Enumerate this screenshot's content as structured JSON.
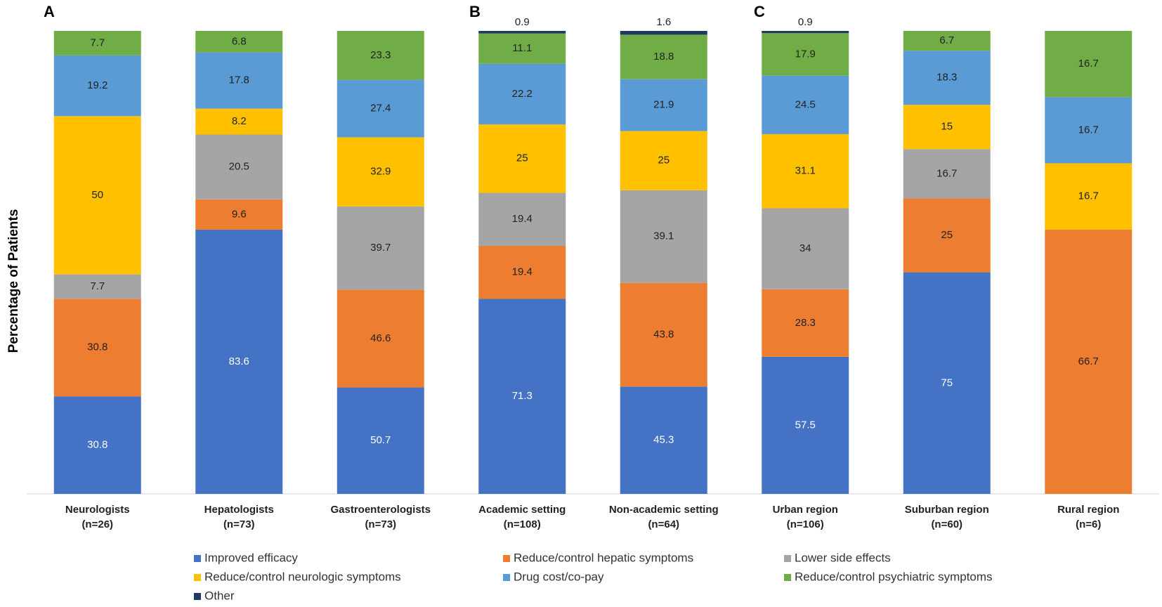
{
  "chart_data": {
    "type": "stacked_bar",
    "y_label": "Percentage of Patients",
    "annotations": [
      "A",
      "B",
      "C"
    ],
    "categories": [
      "Neurologists\n(n=26)",
      "Hepatologists\n(n=73)",
      "Gastroenterologists\n(n=73)",
      "Academic setting\n(n=108)",
      "Non-academic setting\n(n=64)",
      "Urban region\n(n=106)",
      "Suburban region\n(n=60)",
      "Rural region\n(n=6)"
    ],
    "series": [
      {
        "name": "Improved efficacy",
        "color": "#4472c4",
        "values": [
          30.8,
          83.6,
          50.7,
          71.3,
          45.3,
          57.5,
          75.0,
          null
        ]
      },
      {
        "name": "Reduce/control hepatic symptoms",
        "color": "#ed7d31",
        "values": [
          30.8,
          9.6,
          46.6,
          19.4,
          43.8,
          28.3,
          25.0,
          66.7
        ]
      },
      {
        "name": "Lower side effects",
        "color": "#a5a5a5",
        "values": [
          7.7,
          20.5,
          39.7,
          19.4,
          39.1,
          34.0,
          16.7,
          null
        ]
      },
      {
        "name": "Reduce/control neurologic symptoms",
        "color": "#ffc000",
        "values": [
          50.0,
          8.2,
          32.9,
          25.0,
          25.0,
          31.1,
          15.0,
          16.7
        ]
      },
      {
        "name": "Drug cost/co-pay",
        "color": "#5b9bd5",
        "values": [
          19.2,
          17.8,
          27.4,
          22.2,
          21.9,
          24.5,
          18.3,
          16.7
        ]
      },
      {
        "name": "Reduce/control psychiatric symptoms",
        "color": "#70ad47",
        "values": [
          7.7,
          6.8,
          23.3,
          11.1,
          18.8,
          17.9,
          6.7,
          16.7
        ]
      },
      {
        "name": "Other",
        "color": "#203864",
        "values": [
          null,
          null,
          null,
          0.9,
          1.6,
          0.9,
          null,
          null
        ]
      }
    ],
    "value_labels_decimals_shown": true
  }
}
